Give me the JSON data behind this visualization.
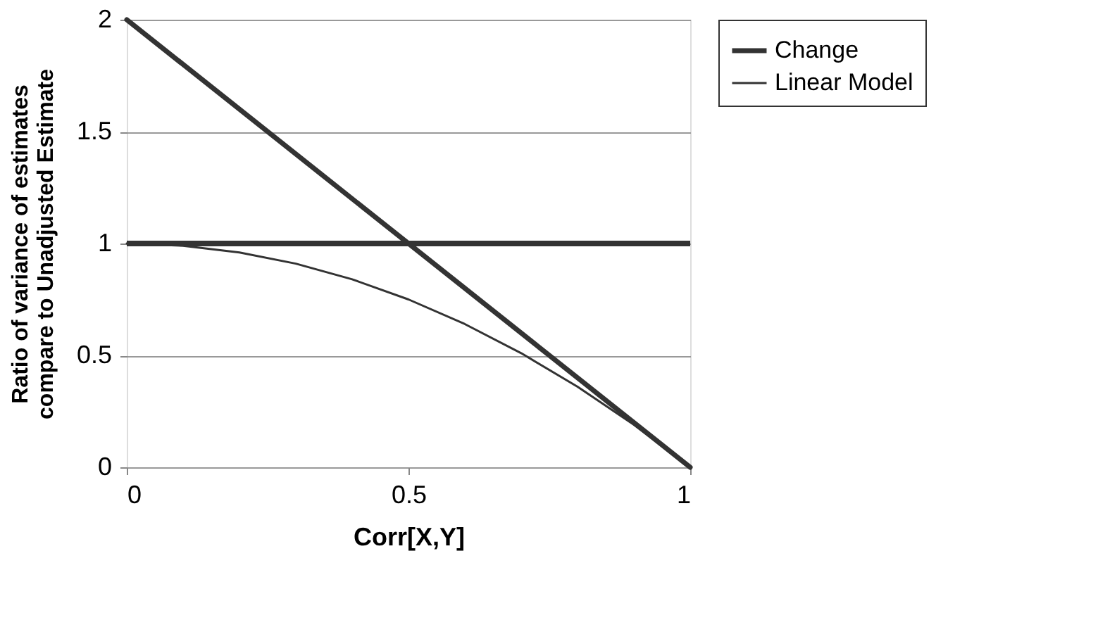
{
  "chart_data": {
    "type": "line",
    "xlabel": "Corr[X,Y]",
    "ylabel": "Ratio of variance of estimates\ncompare to Unadjusted Estimate",
    "xlim": [
      0,
      1
    ],
    "xticks": [
      0,
      0.5,
      1
    ],
    "ylim": [
      0,
      2
    ],
    "yticks": [
      0,
      0.5,
      1,
      1.5,
      2
    ],
    "grid": "y",
    "legend": "right",
    "marker": "none",
    "line_style": "solid",
    "ref_lines": [
      {
        "axis": "y",
        "value": 1,
        "color": "#333333"
      }
    ],
    "series": [
      {
        "name": "Change",
        "color": "#333333",
        "x": [
          0,
          1
        ],
        "values": [
          2,
          0
        ]
      },
      {
        "name": "Linear Model",
        "color": "#333333",
        "x": [
          0,
          0.1,
          0.2,
          0.3,
          0.4,
          0.5,
          0.6,
          0.7,
          0.8,
          0.9,
          1
        ],
        "values": [
          1,
          0.99,
          0.96,
          0.91,
          0.84,
          0.75,
          0.64,
          0.51,
          0.36,
          0.19,
          0
        ]
      }
    ]
  }
}
